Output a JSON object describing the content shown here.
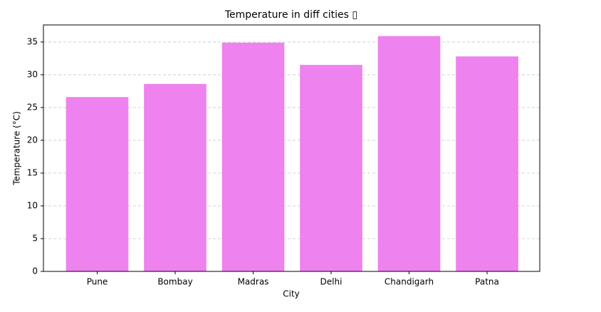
{
  "chart_data": {
    "type": "bar",
    "title": "Temperature in diff cities ▯",
    "xlabel": "City",
    "ylabel": "Temperature (°C)",
    "categories": [
      "Pune",
      "Bombay",
      "Madras",
      "Delhi",
      "Chandigarh",
      "Patna"
    ],
    "values": [
      26.6,
      28.6,
      34.9,
      31.5,
      35.9,
      32.8
    ],
    "color": "#ee82ee",
    "ylim": [
      0,
      37.6
    ],
    "yticks": [
      0,
      5,
      10,
      15,
      20,
      25,
      30,
      35
    ],
    "grid": true
  }
}
